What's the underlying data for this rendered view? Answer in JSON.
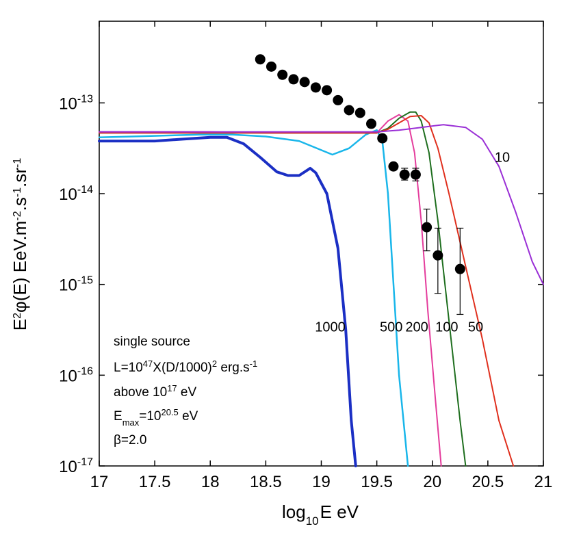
{
  "chart_data": {
    "type": "line",
    "title": "",
    "xlabel": {
      "pre": "log",
      "sub": "10",
      "post": "E eV"
    },
    "ylabel": {
      "a": "E",
      "a_sup": "2",
      "b": "φ(E) EeV.m",
      "b_sup": "-2",
      "c": ".s",
      "c_sup": "-1",
      "d": ".sr",
      "d_sup": "-1"
    },
    "xlim": [
      17,
      21
    ],
    "ylim_log10": [
      -17,
      -12.1
    ],
    "xticks": [
      17,
      17.5,
      18,
      18.5,
      19,
      19.5,
      20,
      20.5,
      21
    ],
    "xtick_labels": [
      "17",
      "17.5",
      "18",
      "18.5",
      "19",
      "19.5",
      "20",
      "20.5",
      "21"
    ],
    "yticks_exp": [
      -13,
      -14,
      -15,
      -16,
      -17
    ],
    "ytick_labels": [
      {
        "base": "10",
        "exp": "-13"
      },
      {
        "base": "10",
        "exp": "-14"
      },
      {
        "base": "10",
        "exp": "-15"
      },
      {
        "base": "10",
        "exp": "-16"
      },
      {
        "base": "10",
        "exp": "-17"
      }
    ],
    "series": [
      {
        "name": "1000",
        "color": "#1b2fc4",
        "width": 4,
        "x": [
          17,
          17.5,
          17.75,
          18,
          18.15,
          18.3,
          18.45,
          18.6,
          18.7,
          18.8,
          18.9,
          18.95,
          19.05,
          19.15,
          19.22,
          19.27,
          19.31
        ],
        "y_log10": [
          -13.42,
          -13.42,
          -13.4,
          -13.38,
          -13.38,
          -13.45,
          -13.6,
          -13.76,
          -13.8,
          -13.8,
          -13.72,
          -13.77,
          -14.0,
          -14.6,
          -15.5,
          -16.5,
          -17.0
        ]
      },
      {
        "name": "500",
        "color": "#19b6ea",
        "width": 2.5,
        "x": [
          17,
          17.3,
          17.6,
          17.9,
          18.2,
          18.5,
          18.8,
          19.0,
          19.1,
          19.25,
          19.4,
          19.5,
          19.55,
          19.6,
          19.65,
          19.7,
          19.78
        ],
        "y_log10": [
          -13.38,
          -13.37,
          -13.36,
          -13.35,
          -13.35,
          -13.37,
          -13.42,
          -13.52,
          -13.57,
          -13.5,
          -13.35,
          -13.3,
          -13.42,
          -14.0,
          -15.0,
          -16.0,
          -17.0
        ]
      },
      {
        "name": "200",
        "color": "#e43c9c",
        "width": 2,
        "x": [
          17,
          17.5,
          18,
          18.5,
          19.0,
          19.3,
          19.5,
          19.6,
          19.7,
          19.78,
          19.84,
          19.9,
          19.96,
          20.03,
          20.08
        ],
        "y_log10": [
          -13.32,
          -13.32,
          -13.32,
          -13.33,
          -13.33,
          -13.33,
          -13.33,
          -13.2,
          -13.13,
          -13.2,
          -13.55,
          -14.3,
          -15.3,
          -16.3,
          -17.0
        ]
      },
      {
        "name": "100",
        "color": "#1e6e1e",
        "width": 2,
        "x": [
          17,
          17.5,
          18,
          18.5,
          19.0,
          19.5,
          19.6,
          19.7,
          19.8,
          19.85,
          19.9,
          19.97,
          20.05,
          20.15,
          20.25,
          20.3
        ],
        "y_log10": [
          -13.33,
          -13.33,
          -13.33,
          -13.33,
          -13.33,
          -13.33,
          -13.28,
          -13.17,
          -13.1,
          -13.1,
          -13.2,
          -13.55,
          -14.3,
          -15.4,
          -16.5,
          -17.0
        ]
      },
      {
        "name": "50",
        "color": "#e0301e",
        "width": 2,
        "x": [
          17,
          17.5,
          18,
          18.5,
          19.0,
          19.5,
          19.6,
          19.7,
          19.8,
          19.9,
          19.97,
          20.05,
          20.15,
          20.3,
          20.45,
          20.6,
          20.73
        ],
        "y_log10": [
          -13.33,
          -13.33,
          -13.33,
          -13.33,
          -13.33,
          -13.33,
          -13.29,
          -13.22,
          -13.15,
          -13.14,
          -13.22,
          -13.5,
          -14.0,
          -14.8,
          -15.6,
          -16.5,
          -17.0
        ]
      },
      {
        "name": "10",
        "color": "#9a2fd6",
        "width": 2,
        "x": [
          17,
          17.5,
          18,
          18.5,
          19.0,
          19.5,
          19.7,
          19.9,
          20.1,
          20.3,
          20.45,
          20.6,
          20.75,
          20.9,
          21.0
        ],
        "y_log10": [
          -13.32,
          -13.32,
          -13.32,
          -13.32,
          -13.32,
          -13.32,
          -13.3,
          -13.27,
          -13.24,
          -13.27,
          -13.4,
          -13.7,
          -14.2,
          -14.75,
          -15.0
        ]
      }
    ],
    "curve_labels": [
      {
        "text": "1000",
        "x": 19.08,
        "y_log10": -15.52
      },
      {
        "text": "500",
        "x": 19.63,
        "y_log10": -15.52
      },
      {
        "text": "200",
        "x": 19.86,
        "y_log10": -15.52
      },
      {
        "text": "100",
        "x": 20.13,
        "y_log10": -15.52
      },
      {
        "text": "50",
        "x": 20.39,
        "y_log10": -15.52
      },
      {
        "text": "10",
        "x": 20.63,
        "y_log10": -13.65
      }
    ],
    "points": [
      {
        "x": 18.45,
        "y_log10": -12.52
      },
      {
        "x": 18.55,
        "y_log10": -12.6
      },
      {
        "x": 18.65,
        "y_log10": -12.69
      },
      {
        "x": 18.75,
        "y_log10": -12.74
      },
      {
        "x": 18.85,
        "y_log10": -12.77
      },
      {
        "x": 18.95,
        "y_log10": -12.83
      },
      {
        "x": 19.05,
        "y_log10": -12.86
      },
      {
        "x": 19.15,
        "y_log10": -12.97
      },
      {
        "x": 19.25,
        "y_log10": -13.08
      },
      {
        "x": 19.35,
        "y_log10": -13.11
      },
      {
        "x": 19.45,
        "y_log10": -13.23
      },
      {
        "x": 19.55,
        "y_log10": -13.39
      },
      {
        "x": 19.65,
        "y_log10": -13.7
      },
      {
        "x": 19.75,
        "y_log10": -13.79,
        "err_lo": -13.85,
        "err_hi": -13.72
      },
      {
        "x": 19.85,
        "y_log10": -13.79,
        "err_lo": -13.86,
        "err_hi": -13.72
      },
      {
        "x": 19.95,
        "y_log10": -14.37,
        "err_lo": -14.63,
        "err_hi": -14.17
      },
      {
        "x": 20.05,
        "y_log10": -14.68,
        "err_lo": -15.1,
        "err_hi": -14.38
      },
      {
        "x": 20.25,
        "y_log10": -14.83,
        "err_lo": -15.33,
        "err_hi": -14.38
      }
    ],
    "annotations": {
      "line1": "single source",
      "line2": {
        "a": "L=10",
        "a_sup": "47",
        "b": "X(D/1000)",
        "b_sup": "2",
        "c": " erg.s",
        "c_sup": "-1"
      },
      "line3": {
        "a": "above 10",
        "a_sup": "17",
        "b": " eV"
      },
      "line4": {
        "a": "E",
        "a_sub": "max",
        "b": "=10",
        "b_sup": "20.5",
        "c": " eV"
      },
      "line5": "β=2.0"
    }
  }
}
